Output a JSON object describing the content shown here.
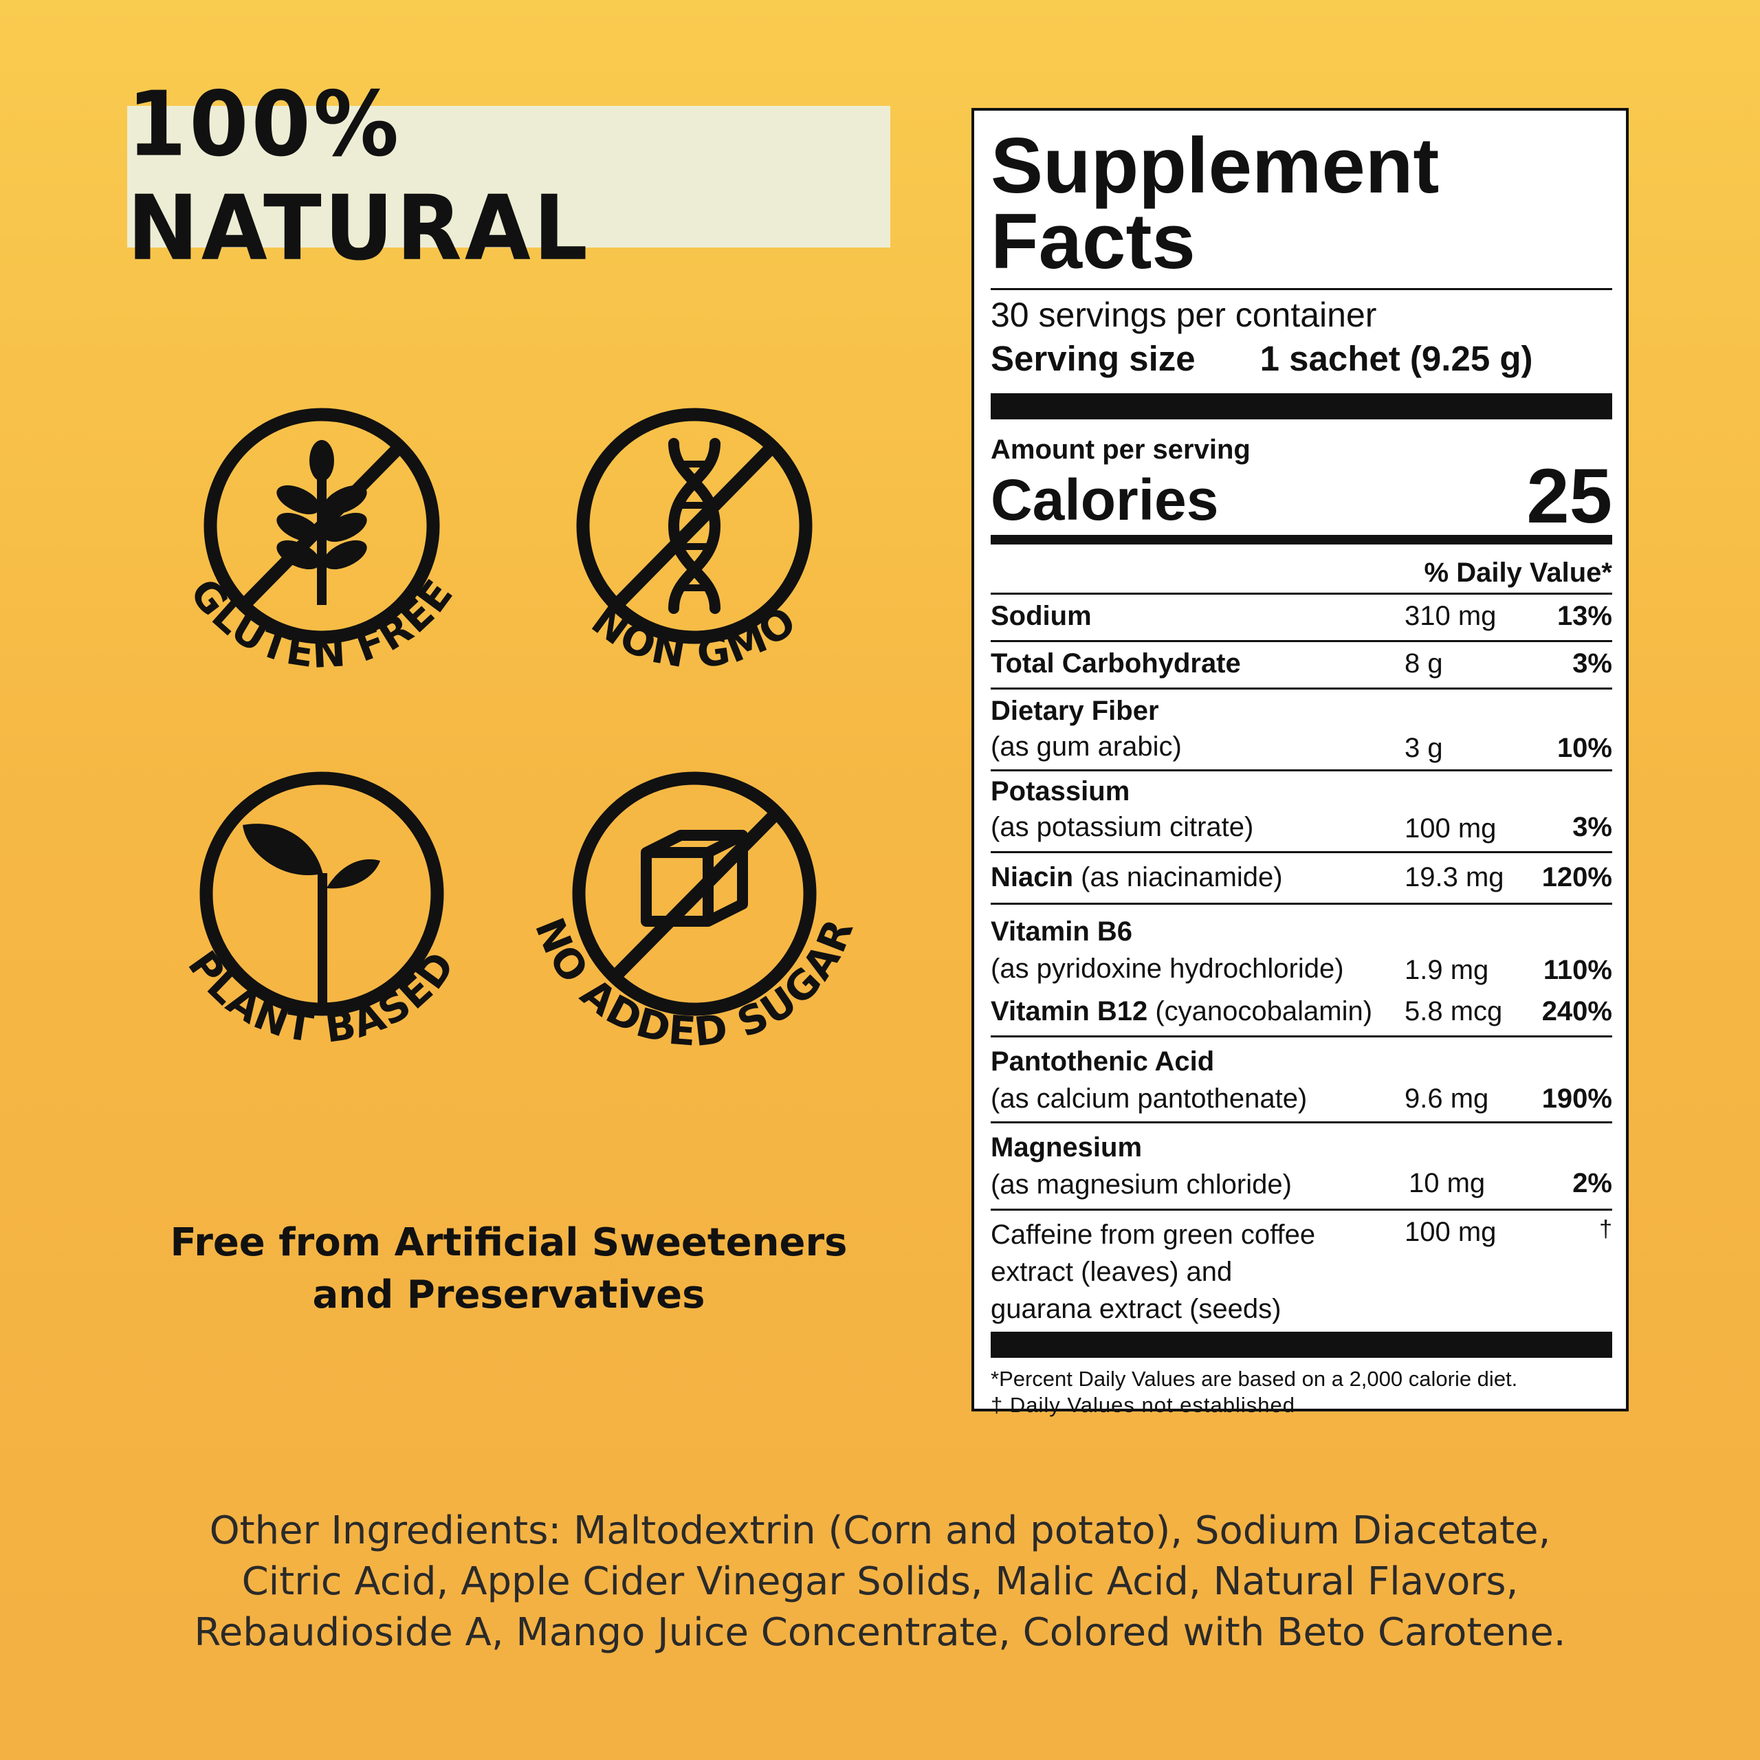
{
  "badge": "100% NATURAL",
  "icons": [
    {
      "label": "GLUTEN FREE",
      "icon": "wheat-icon"
    },
    {
      "label": "NON GMO",
      "icon": "dna-icon"
    },
    {
      "label": "PLANT BASED",
      "icon": "sprout-icon"
    },
    {
      "label": "NO ADDED SUGAR",
      "icon": "sugar-cube-icon"
    }
  ],
  "free_from": [
    "Free from Artificial Sweeteners",
    "and Preservatives"
  ],
  "facts": {
    "title_line1": "Supplement",
    "title_line2": "Facts",
    "servings": "30 servings per container",
    "serving_size_label": "Serving size",
    "serving_size_value": "1 sachet (9.25 g)",
    "amount_per_serving": "Amount per serving",
    "calories_label": "Calories",
    "calories_value": "25",
    "dv_header": "% Daily Value*",
    "rows": [
      {
        "name": "Sodium",
        "sub": "",
        "amount": "310 mg",
        "dv": "13%"
      },
      {
        "name": "Total Carbohydrate",
        "sub": "",
        "amount": "8 g",
        "dv": "3%"
      },
      {
        "name": "Dietary Fiber",
        "sub": "(as gum arabic)",
        "amount": "3 g",
        "dv": "10%"
      },
      {
        "name": "Potassium",
        "sub": "(as potassium citrate)",
        "amount": "100 mg",
        "dv": "3%"
      },
      {
        "name": "Niacin",
        "inline": " (as niacinamide)",
        "amount": "19.3 mg",
        "dv": "120%"
      },
      {
        "name": "Vitamin B6",
        "sub": "(as pyridoxine hydrochloride)",
        "amount": "1.9 mg",
        "dv": "110%"
      },
      {
        "name": "Vitamin B12",
        "inline": " (cyanocobalamin)",
        "amount": "5.8 mcg",
        "dv": "240%"
      },
      {
        "name": "Pantothenic Acid",
        "sub": "(as calcium pantothenate)",
        "amount": "9.6 mg",
        "dv": "190%"
      },
      {
        "name": "Magnesium",
        "sub": "(as magnesium chloride)",
        "amount": "10 mg",
        "dv": "2%"
      }
    ],
    "caffeine": {
      "lines": [
        "Caffeine from green coffee",
        "extract (leaves) and",
        "guarana extract (seeds)"
      ],
      "amount": "100 mg",
      "dv": "†"
    },
    "footnote1": "*Percent Daily Values are based on a 2,000 calorie diet.",
    "footnote2": "† Daily Values not established"
  },
  "ingredients": [
    "Other Ingredients: Maltodextrin (Corn and potato), Sodium Diacetate,",
    "Citric Acid, Apple Cider Vinegar Solids, Malic Acid, Natural Flavors,",
    "Rebaudioside A, Mango Juice Concentrate, Colored with Beto Carotene."
  ]
}
